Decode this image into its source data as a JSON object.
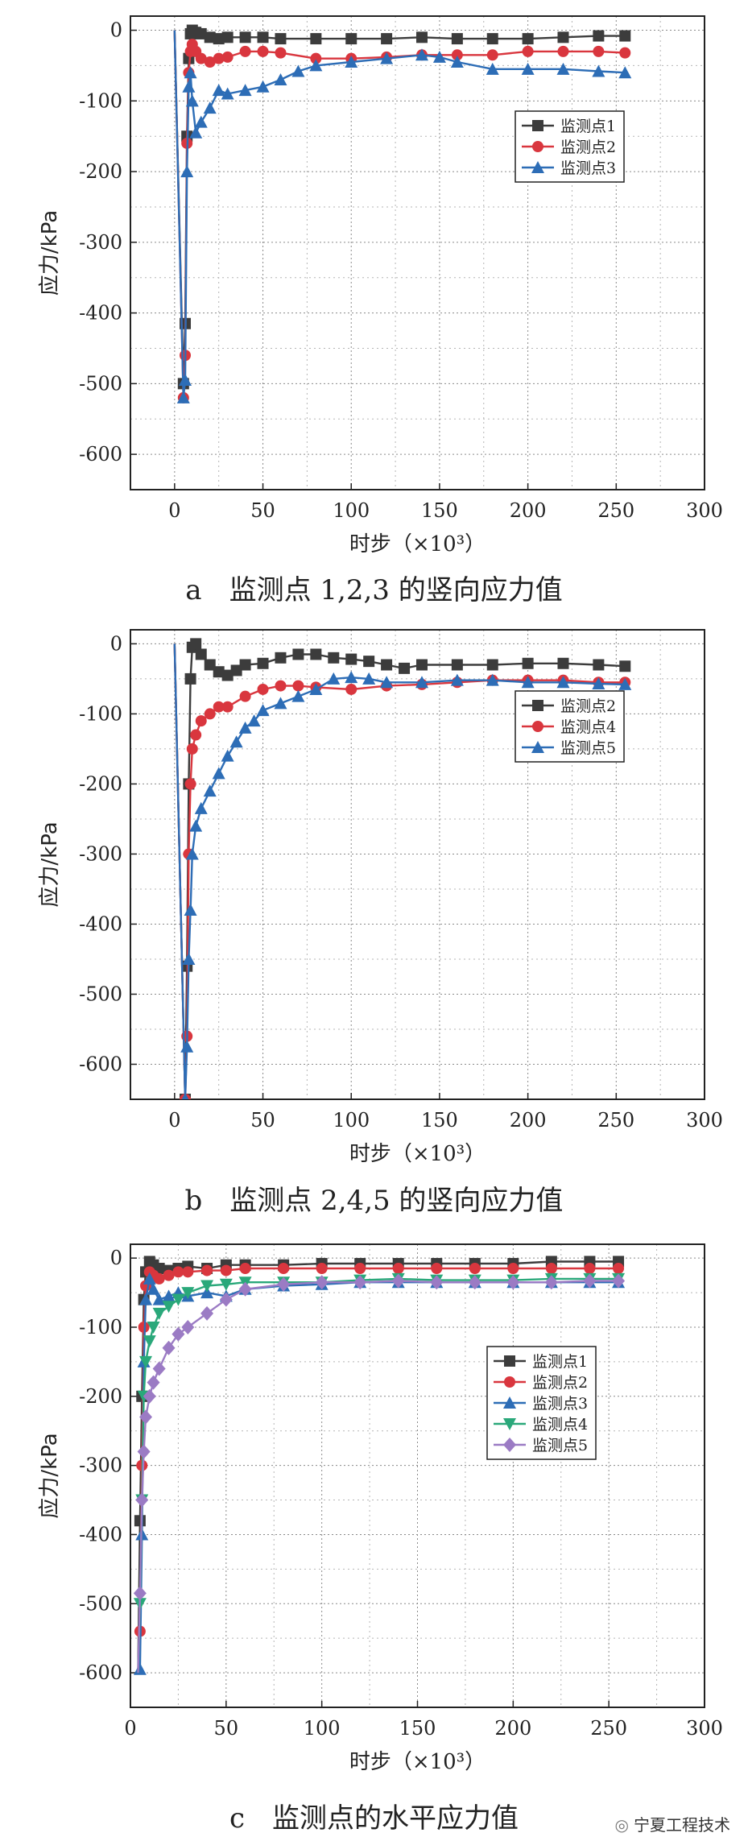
{
  "chart_data": [
    {
      "type": "line",
      "caption": "a　监测点 1,2,3 的竖向应力值",
      "xlabel": "时步（×10³）",
      "ylabel": "应力/kPa",
      "xlim": [
        -25,
        300
      ],
      "ylim": [
        -650,
        20
      ],
      "xticks": [
        0,
        50,
        100,
        150,
        200,
        250,
        300
      ],
      "yticks": [
        0,
        -100,
        -200,
        -300,
        -400,
        -500,
        -600
      ],
      "grid": true,
      "legend_position": "upper-right",
      "series": [
        {
          "name": "监测点1",
          "color": "#3c3c3c",
          "marker": "square",
          "x": [
            0,
            5,
            6,
            7,
            8,
            9,
            10,
            12,
            15,
            20,
            25,
            30,
            40,
            50,
            60,
            80,
            100,
            120,
            140,
            160,
            180,
            200,
            220,
            240,
            255
          ],
          "y": [
            0,
            -500,
            -415,
            -150,
            -40,
            -5,
            0,
            -3,
            -5,
            -10,
            -12,
            -10,
            -10,
            -10,
            -12,
            -12,
            -12,
            -12,
            -10,
            -12,
            -12,
            -12,
            -10,
            -8,
            -8
          ]
        },
        {
          "name": "监测点2",
          "color": "#d9363e",
          "marker": "circle",
          "x": [
            0,
            5,
            6,
            7,
            8,
            9,
            10,
            12,
            15,
            20,
            25,
            30,
            40,
            50,
            60,
            80,
            100,
            120,
            140,
            160,
            180,
            200,
            220,
            240,
            255
          ],
          "y": [
            0,
            -520,
            -460,
            -160,
            -60,
            -30,
            -20,
            -30,
            -40,
            -45,
            -40,
            -38,
            -30,
            -30,
            -32,
            -40,
            -40,
            -38,
            -35,
            -35,
            -35,
            -30,
            -30,
            -30,
            -32
          ]
        },
        {
          "name": "监测点3",
          "color": "#2d6db6",
          "marker": "triangle",
          "x": [
            0,
            5,
            6,
            7,
            8,
            9,
            10,
            12,
            15,
            20,
            25,
            30,
            40,
            50,
            60,
            70,
            80,
            100,
            120,
            140,
            150,
            160,
            180,
            200,
            220,
            240,
            255
          ],
          "y": [
            0,
            -520,
            -495,
            -200,
            -80,
            -60,
            -100,
            -145,
            -130,
            -110,
            -85,
            -90,
            -85,
            -80,
            -70,
            -58,
            -50,
            -45,
            -40,
            -35,
            -38,
            -45,
            -55,
            -55,
            -55,
            -58,
            -60
          ]
        }
      ]
    },
    {
      "type": "line",
      "caption": "b　监测点 2,4,5 的竖向应力值",
      "xlabel": "时步（×10³）",
      "ylabel": "应力/kPa",
      "xlim": [
        -25,
        300
      ],
      "ylim": [
        -650,
        20
      ],
      "xticks": [
        0,
        50,
        100,
        150,
        200,
        250,
        300
      ],
      "yticks": [
        0,
        -100,
        -200,
        -300,
        -400,
        -500,
        -600
      ],
      "grid": true,
      "legend_position": "upper-right",
      "series": [
        {
          "name": "监测点2",
          "color": "#3c3c3c",
          "marker": "square",
          "x": [
            0,
            6,
            7,
            8,
            9,
            10,
            12,
            15,
            20,
            25,
            30,
            35,
            40,
            50,
            60,
            70,
            80,
            90,
            100,
            110,
            120,
            130,
            140,
            160,
            180,
            200,
            220,
            240,
            255
          ],
          "y": [
            0,
            -650,
            -460,
            -200,
            -50,
            -5,
            0,
            -15,
            -30,
            -40,
            -45,
            -38,
            -30,
            -28,
            -20,
            -15,
            -15,
            -20,
            -22,
            -25,
            -30,
            -35,
            -30,
            -30,
            -30,
            -28,
            -28,
            -30,
            -32
          ]
        },
        {
          "name": "监测点4",
          "color": "#d9363e",
          "marker": "circle",
          "x": [
            0,
            6,
            7,
            8,
            9,
            10,
            12,
            15,
            20,
            25,
            30,
            40,
            50,
            60,
            70,
            80,
            100,
            120,
            140,
            160,
            180,
            200,
            220,
            240,
            255
          ],
          "y": [
            0,
            -650,
            -560,
            -300,
            -200,
            -150,
            -130,
            -110,
            -100,
            -90,
            -90,
            -75,
            -65,
            -60,
            -60,
            -62,
            -65,
            -60,
            -58,
            -55,
            -52,
            -52,
            -52,
            -55,
            -55
          ]
        },
        {
          "name": "监测点5",
          "color": "#2d6db6",
          "marker": "triangle",
          "x": [
            0,
            6,
            7,
            8,
            9,
            10,
            12,
            15,
            20,
            25,
            30,
            35,
            40,
            45,
            50,
            60,
            70,
            80,
            90,
            100,
            110,
            120,
            140,
            160,
            180,
            200,
            220,
            240,
            255
          ],
          "y": [
            0,
            -650,
            -575,
            -450,
            -380,
            -300,
            -260,
            -235,
            -210,
            -185,
            -160,
            -140,
            -120,
            -110,
            -95,
            -85,
            -75,
            -65,
            -50,
            -48,
            -50,
            -55,
            -55,
            -52,
            -52,
            -55,
            -55,
            -57,
            -58
          ]
        }
      ]
    },
    {
      "type": "line",
      "caption": "c　监测点的水平应力值",
      "xlabel": "时步（×10³）",
      "ylabel": "应力/kPa",
      "xlim": [
        0,
        300
      ],
      "ylim": [
        -650,
        20
      ],
      "xticks": [
        0,
        50,
        100,
        150,
        200,
        250,
        300
      ],
      "yticks": [
        0,
        -100,
        -200,
        -300,
        -400,
        -500,
        -600
      ],
      "grid": true,
      "legend_position": "upper-right",
      "series": [
        {
          "name": "监测点1",
          "color": "#3c3c3c",
          "marker": "square",
          "x": [
            4,
            5,
            6,
            7,
            8,
            10,
            12,
            15,
            20,
            25,
            30,
            40,
            50,
            60,
            80,
            100,
            120,
            140,
            160,
            180,
            200,
            220,
            240,
            255
          ],
          "y": [
            -600,
            -380,
            -200,
            -60,
            -20,
            -5,
            -10,
            -15,
            -18,
            -15,
            -12,
            -15,
            -10,
            -10,
            -10,
            -8,
            -8,
            -8,
            -8,
            -8,
            -8,
            -5,
            -5,
            -5
          ]
        },
        {
          "name": "监测点2",
          "color": "#d9363e",
          "marker": "circle",
          "x": [
            4,
            5,
            6,
            7,
            8,
            10,
            12,
            15,
            20,
            25,
            30,
            40,
            50,
            60,
            80,
            100,
            120,
            140,
            160,
            180,
            200,
            220,
            240,
            255
          ],
          "y": [
            -600,
            -540,
            -300,
            -100,
            -40,
            -20,
            -25,
            -30,
            -25,
            -20,
            -20,
            -18,
            -18,
            -15,
            -15,
            -15,
            -15,
            -15,
            -15,
            -15,
            -15,
            -15,
            -15,
            -15
          ]
        },
        {
          "name": "监测点3",
          "color": "#2d6db6",
          "marker": "triangle",
          "x": [
            4,
            5,
            6,
            7,
            8,
            10,
            12,
            15,
            20,
            25,
            30,
            40,
            50,
            60,
            80,
            100,
            120,
            140,
            160,
            180,
            200,
            220,
            240,
            255
          ],
          "y": [
            -600,
            -595,
            -400,
            -150,
            -60,
            -30,
            -45,
            -60,
            -55,
            -50,
            -55,
            -50,
            -55,
            -45,
            -40,
            -38,
            -35,
            -35,
            -35,
            -35,
            -35,
            -35,
            -35,
            -35
          ]
        },
        {
          "name": "监测点4",
          "color": "#2aa87a",
          "marker": "triangle-down",
          "x": [
            4,
            5,
            6,
            7,
            8,
            10,
            12,
            15,
            20,
            25,
            30,
            40,
            50,
            60,
            80,
            100,
            120,
            140,
            160,
            180,
            200,
            220,
            240,
            255
          ],
          "y": [
            -600,
            -500,
            -350,
            -200,
            -150,
            -120,
            -100,
            -80,
            -70,
            -60,
            -50,
            -40,
            -38,
            -35,
            -35,
            -35,
            -32,
            -30,
            -32,
            -32,
            -32,
            -30,
            -30,
            -30
          ]
        },
        {
          "name": "监测点5",
          "color": "#9b7bc4",
          "marker": "diamond",
          "x": [
            4,
            5,
            6,
            7,
            8,
            10,
            12,
            15,
            20,
            25,
            30,
            40,
            50,
            60,
            80,
            100,
            120,
            140,
            160,
            180,
            200,
            220,
            240,
            255
          ],
          "y": [
            -600,
            -485,
            -350,
            -280,
            -230,
            -200,
            -180,
            -160,
            -130,
            -110,
            -100,
            -80,
            -60,
            -45,
            -38,
            -35,
            -35,
            -33,
            -35,
            -35,
            -35,
            -35,
            -33,
            -33
          ]
        }
      ]
    }
  ],
  "watermark": {
    "icon": "wechat-icon",
    "text": "宁夏工程技术"
  }
}
